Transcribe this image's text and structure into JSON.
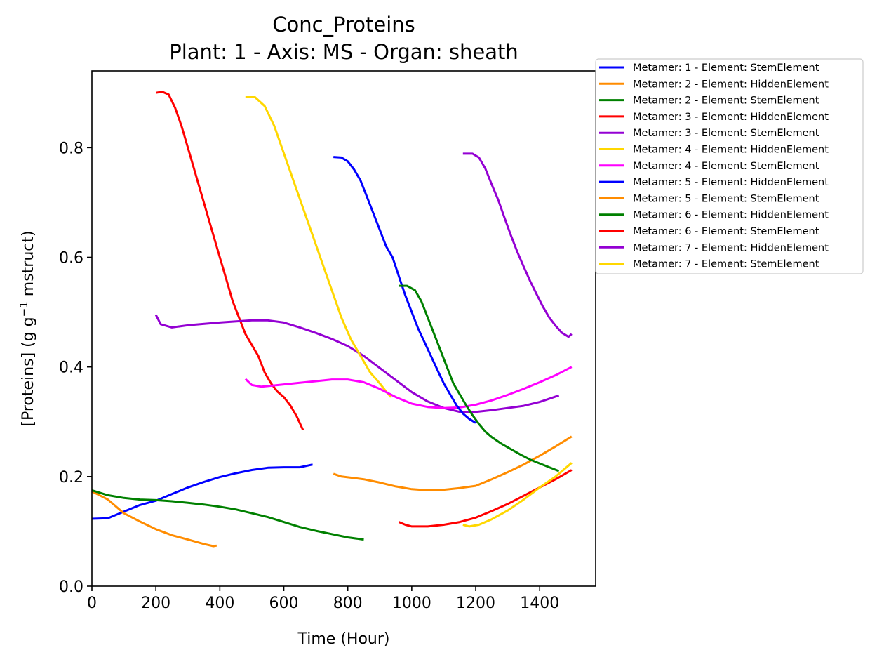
{
  "chart_data": {
    "type": "line",
    "title": "Conc_Proteins",
    "subtitle": "Plant: 1 - Axis: MS - Organ: sheath",
    "xlabel": "Time (Hour)",
    "ylabel": "[Proteins] (g g",
    "ylabel_sup": "−1",
    "ylabel_tail": " mstruct)",
    "xlim": [
      0,
      1575
    ],
    "ylim": [
      0,
      0.94
    ],
    "xticks": [
      0,
      200,
      400,
      600,
      800,
      1000,
      1200,
      1400
    ],
    "yticks": [
      0.0,
      0.2,
      0.4,
      0.6,
      0.8
    ],
    "xtick_labels": [
      "0",
      "200",
      "400",
      "600",
      "800",
      "1000",
      "1200",
      "1400"
    ],
    "ytick_labels": [
      "0.0",
      "0.2",
      "0.4",
      "0.6",
      "0.8"
    ],
    "grid": false,
    "legend_position": "outside-top-right",
    "series": [
      {
        "name": "Metamer: 1 - Element: StemElement",
        "color": "#0000ff",
        "points": [
          [
            0,
            0.123
          ],
          [
            50,
            0.124
          ],
          [
            100,
            0.136
          ],
          [
            150,
            0.148
          ],
          [
            200,
            0.156
          ],
          [
            250,
            0.168
          ],
          [
            300,
            0.18
          ],
          [
            350,
            0.19
          ],
          [
            400,
            0.199
          ],
          [
            450,
            0.206
          ],
          [
            500,
            0.212
          ],
          [
            550,
            0.216
          ],
          [
            600,
            0.217
          ],
          [
            650,
            0.217
          ],
          [
            690,
            0.222
          ]
        ]
      },
      {
        "name": "Metamer: 2 - Element: HiddenElement",
        "color": "#ff8c00",
        "points": [
          [
            0,
            0.173
          ],
          [
            50,
            0.158
          ],
          [
            100,
            0.133
          ],
          [
            150,
            0.118
          ],
          [
            200,
            0.104
          ],
          [
            250,
            0.093
          ],
          [
            300,
            0.085
          ],
          [
            350,
            0.077
          ],
          [
            380,
            0.073
          ],
          [
            390,
            0.074
          ]
        ]
      },
      {
        "name": "Metamer: 2 - Element: StemElement",
        "color": "#008000",
        "points": [
          [
            0,
            0.175
          ],
          [
            50,
            0.166
          ],
          [
            100,
            0.161
          ],
          [
            150,
            0.158
          ],
          [
            200,
            0.157
          ],
          [
            250,
            0.155
          ],
          [
            300,
            0.152
          ],
          [
            350,
            0.149
          ],
          [
            400,
            0.145
          ],
          [
            450,
            0.14
          ],
          [
            500,
            0.133
          ],
          [
            550,
            0.126
          ],
          [
            600,
            0.117
          ],
          [
            650,
            0.108
          ],
          [
            700,
            0.101
          ],
          [
            750,
            0.095
          ],
          [
            800,
            0.089
          ],
          [
            850,
            0.085
          ]
        ]
      },
      {
        "name": "Metamer: 3 - Element: HiddenElement",
        "color": "#ff0000",
        "points": [
          [
            200,
            0.9
          ],
          [
            220,
            0.902
          ],
          [
            240,
            0.897
          ],
          [
            260,
            0.873
          ],
          [
            280,
            0.84
          ],
          [
            300,
            0.8
          ],
          [
            320,
            0.76
          ],
          [
            340,
            0.72
          ],
          [
            360,
            0.68
          ],
          [
            380,
            0.64
          ],
          [
            400,
            0.6
          ],
          [
            420,
            0.56
          ],
          [
            440,
            0.52
          ],
          [
            460,
            0.49
          ],
          [
            480,
            0.46
          ],
          [
            500,
            0.44
          ],
          [
            520,
            0.42
          ],
          [
            540,
            0.39
          ],
          [
            560,
            0.37
          ],
          [
            580,
            0.355
          ],
          [
            600,
            0.345
          ],
          [
            620,
            0.33
          ],
          [
            640,
            0.31
          ],
          [
            660,
            0.285
          ]
        ]
      },
      {
        "name": "Metamer: 3 - Element: StemElement",
        "color": "#9400d3",
        "points": [
          [
            200,
            0.495
          ],
          [
            215,
            0.478
          ],
          [
            250,
            0.472
          ],
          [
            300,
            0.476
          ],
          [
            400,
            0.481
          ],
          [
            500,
            0.485
          ],
          [
            550,
            0.485
          ],
          [
            600,
            0.481
          ],
          [
            650,
            0.472
          ],
          [
            700,
            0.462
          ],
          [
            750,
            0.451
          ],
          [
            800,
            0.438
          ],
          [
            850,
            0.42
          ],
          [
            900,
            0.398
          ],
          [
            950,
            0.376
          ],
          [
            1000,
            0.354
          ],
          [
            1050,
            0.337
          ],
          [
            1100,
            0.325
          ],
          [
            1150,
            0.318
          ],
          [
            1200,
            0.318
          ],
          [
            1250,
            0.321
          ],
          [
            1300,
            0.325
          ],
          [
            1350,
            0.329
          ],
          [
            1400,
            0.336
          ],
          [
            1460,
            0.348
          ]
        ]
      },
      {
        "name": "Metamer: 4 - Element: HiddenElement",
        "color": "#ffd700",
        "points": [
          [
            480,
            0.892
          ],
          [
            510,
            0.892
          ],
          [
            540,
            0.876
          ],
          [
            570,
            0.84
          ],
          [
            600,
            0.79
          ],
          [
            630,
            0.74
          ],
          [
            660,
            0.69
          ],
          [
            690,
            0.64
          ],
          [
            720,
            0.59
          ],
          [
            750,
            0.54
          ],
          [
            780,
            0.49
          ],
          [
            810,
            0.45
          ],
          [
            840,
            0.42
          ],
          [
            870,
            0.39
          ],
          [
            900,
            0.37
          ],
          [
            920,
            0.355
          ],
          [
            935,
            0.345
          ]
        ]
      },
      {
        "name": "Metamer: 4 - Element: StemElement",
        "color": "#ff00ff",
        "points": [
          [
            480,
            0.378
          ],
          [
            500,
            0.367
          ],
          [
            530,
            0.364
          ],
          [
            600,
            0.368
          ],
          [
            650,
            0.371
          ],
          [
            700,
            0.374
          ],
          [
            750,
            0.377
          ],
          [
            800,
            0.377
          ],
          [
            850,
            0.372
          ],
          [
            900,
            0.36
          ],
          [
            950,
            0.345
          ],
          [
            1000,
            0.333
          ],
          [
            1050,
            0.327
          ],
          [
            1100,
            0.325
          ],
          [
            1150,
            0.326
          ],
          [
            1200,
            0.331
          ],
          [
            1250,
            0.339
          ],
          [
            1300,
            0.349
          ],
          [
            1350,
            0.36
          ],
          [
            1400,
            0.372
          ],
          [
            1450,
            0.385
          ],
          [
            1500,
            0.4
          ]
        ]
      },
      {
        "name": "Metamer: 5 - Element: HiddenElement",
        "color": "#0000ff",
        "points": [
          [
            755,
            0.783
          ],
          [
            780,
            0.782
          ],
          [
            800,
            0.775
          ],
          [
            820,
            0.76
          ],
          [
            840,
            0.74
          ],
          [
            860,
            0.71
          ],
          [
            880,
            0.68
          ],
          [
            900,
            0.65
          ],
          [
            920,
            0.62
          ],
          [
            940,
            0.6
          ],
          [
            960,
            0.565
          ],
          [
            980,
            0.53
          ],
          [
            1000,
            0.5
          ],
          [
            1020,
            0.47
          ],
          [
            1040,
            0.445
          ],
          [
            1060,
            0.42
          ],
          [
            1080,
            0.395
          ],
          [
            1100,
            0.37
          ],
          [
            1120,
            0.35
          ],
          [
            1140,
            0.33
          ],
          [
            1160,
            0.315
          ],
          [
            1180,
            0.305
          ],
          [
            1200,
            0.298
          ]
        ]
      },
      {
        "name": "Metamer: 5 - Element: StemElement",
        "color": "#ff8c00",
        "points": [
          [
            755,
            0.205
          ],
          [
            780,
            0.2
          ],
          [
            850,
            0.195
          ],
          [
            900,
            0.189
          ],
          [
            950,
            0.182
          ],
          [
            1000,
            0.177
          ],
          [
            1050,
            0.175
          ],
          [
            1100,
            0.176
          ],
          [
            1150,
            0.179
          ],
          [
            1200,
            0.183
          ],
          [
            1250,
            0.195
          ],
          [
            1300,
            0.208
          ],
          [
            1350,
            0.222
          ],
          [
            1400,
            0.238
          ],
          [
            1450,
            0.255
          ],
          [
            1500,
            0.273
          ]
        ]
      },
      {
        "name": "Metamer: 6 - Element: HiddenElement",
        "color": "#008000",
        "points": [
          [
            960,
            0.548
          ],
          [
            985,
            0.548
          ],
          [
            1010,
            0.54
          ],
          [
            1030,
            0.52
          ],
          [
            1050,
            0.49
          ],
          [
            1070,
            0.46
          ],
          [
            1090,
            0.43
          ],
          [
            1110,
            0.4
          ],
          [
            1130,
            0.37
          ],
          [
            1150,
            0.35
          ],
          [
            1170,
            0.33
          ],
          [
            1190,
            0.312
          ],
          [
            1210,
            0.296
          ],
          [
            1230,
            0.282
          ],
          [
            1250,
            0.272
          ],
          [
            1280,
            0.26
          ],
          [
            1310,
            0.25
          ],
          [
            1340,
            0.24
          ],
          [
            1370,
            0.231
          ],
          [
            1400,
            0.224
          ],
          [
            1430,
            0.217
          ],
          [
            1460,
            0.21
          ]
        ]
      },
      {
        "name": "Metamer: 6 - Element: StemElement",
        "color": "#ff0000",
        "points": [
          [
            960,
            0.117
          ],
          [
            980,
            0.112
          ],
          [
            1000,
            0.109
          ],
          [
            1050,
            0.109
          ],
          [
            1100,
            0.112
          ],
          [
            1150,
            0.117
          ],
          [
            1200,
            0.125
          ],
          [
            1250,
            0.137
          ],
          [
            1300,
            0.15
          ],
          [
            1350,
            0.165
          ],
          [
            1400,
            0.18
          ],
          [
            1450,
            0.195
          ],
          [
            1500,
            0.212
          ]
        ]
      },
      {
        "name": "Metamer: 7 - Element: HiddenElement",
        "color": "#9400d3",
        "points": [
          [
            1160,
            0.789
          ],
          [
            1190,
            0.789
          ],
          [
            1210,
            0.782
          ],
          [
            1230,
            0.762
          ],
          [
            1250,
            0.733
          ],
          [
            1270,
            0.705
          ],
          [
            1290,
            0.672
          ],
          [
            1310,
            0.64
          ],
          [
            1330,
            0.61
          ],
          [
            1350,
            0.583
          ],
          [
            1370,
            0.557
          ],
          [
            1390,
            0.533
          ],
          [
            1410,
            0.51
          ],
          [
            1430,
            0.49
          ],
          [
            1450,
            0.475
          ],
          [
            1470,
            0.462
          ],
          [
            1490,
            0.455
          ],
          [
            1500,
            0.46
          ]
        ]
      },
      {
        "name": "Metamer: 7 - Element: StemElement",
        "color": "#ffd700",
        "points": [
          [
            1160,
            0.112
          ],
          [
            1180,
            0.109
          ],
          [
            1210,
            0.112
          ],
          [
            1250,
            0.122
          ],
          [
            1300,
            0.138
          ],
          [
            1350,
            0.158
          ],
          [
            1400,
            0.18
          ],
          [
            1450,
            0.2
          ],
          [
            1500,
            0.225
          ]
        ]
      }
    ]
  }
}
